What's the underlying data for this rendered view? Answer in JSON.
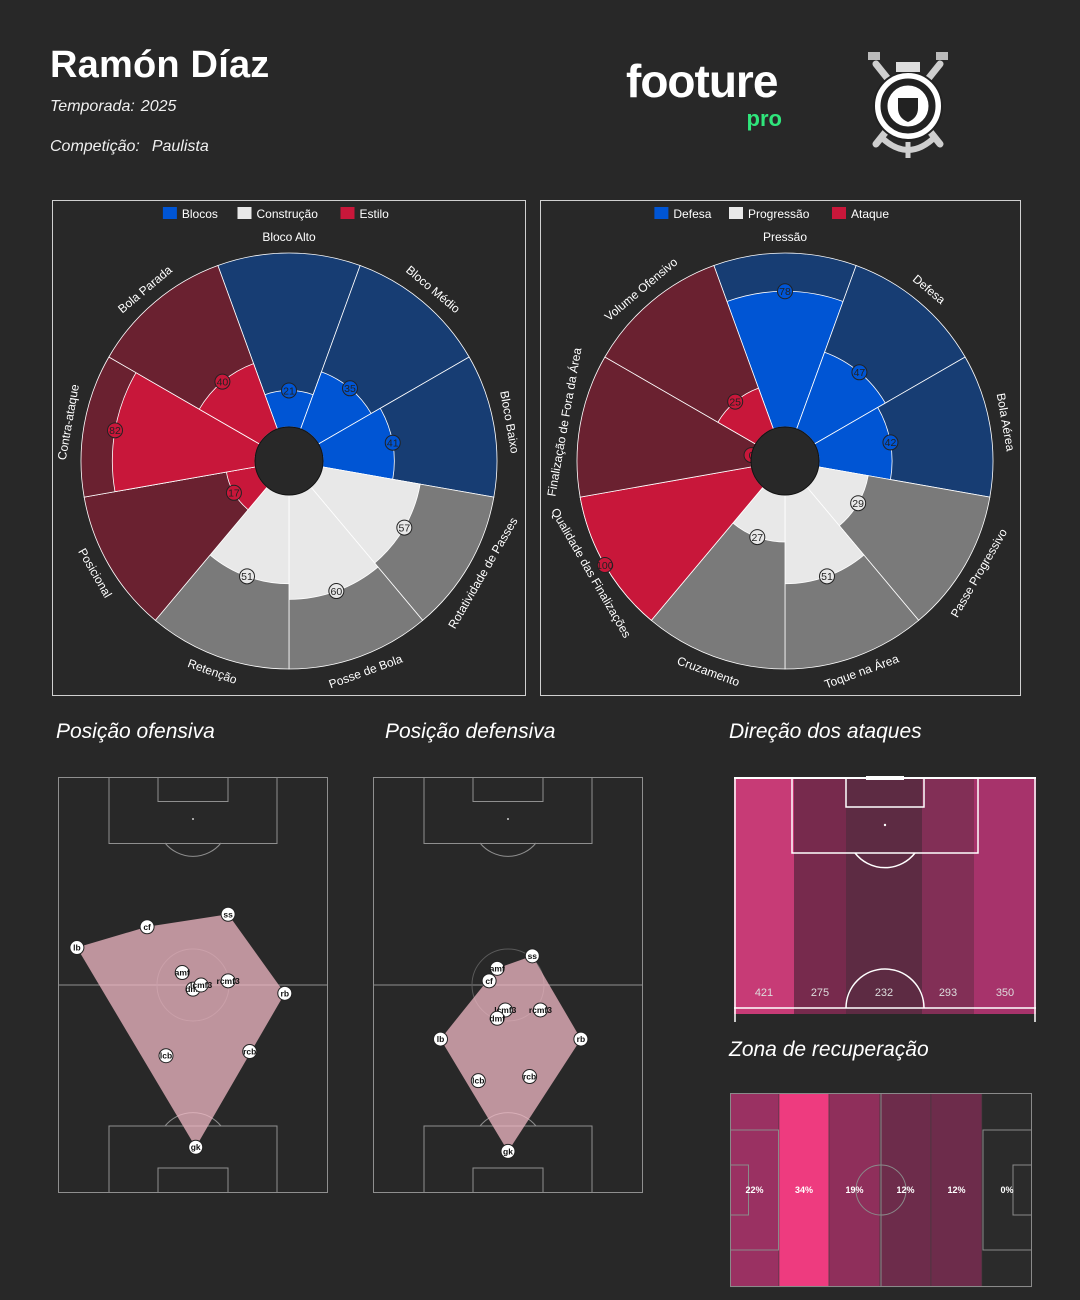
{
  "header": {
    "coach_name": "Ramón Díaz",
    "season_label": "Temporada:",
    "season_value": "2025",
    "competition_label": "Competição:",
    "competition_value": "Paulista",
    "brand_word": "footure",
    "brand_sub": "pro"
  },
  "chart_data": [
    {
      "type": "polar-bar",
      "legend": [
        {
          "label": "Blocos",
          "color": "#0055d4"
        },
        {
          "label": "Construção",
          "color": "#e8e8e8"
        },
        {
          "label": "Estilo",
          "color": "#c8173a"
        }
      ],
      "categories": [
        "Bloco Alto",
        "Bloco Médio",
        "Bloco Baixo",
        "Rotatividade de Passes",
        "Posse de Bola",
        "Retenção",
        "Posicional",
        "Contra-ataque",
        "Bola Parada"
      ],
      "groups": [
        "Blocos",
        "Blocos",
        "Blocos",
        "Construção",
        "Construção",
        "Construção",
        "Estilo",
        "Estilo",
        "Estilo"
      ],
      "values": [
        21,
        35,
        41,
        57,
        60,
        51,
        17,
        82,
        40
      ],
      "rlim": [
        0,
        100
      ]
    },
    {
      "type": "polar-bar",
      "legend": [
        {
          "label": "Defesa",
          "color": "#0055d4"
        },
        {
          "label": "Progressão",
          "color": "#e8e8e8"
        },
        {
          "label": "Ataque",
          "color": "#c8173a"
        }
      ],
      "categories": [
        "Pressão",
        "Defesa",
        "Bola Aérea",
        "Passe Progressivo",
        "Toque na Área",
        "Cruzamento",
        "Qualidade das Finalizações",
        "Finalização de Fora da Área",
        "Volume Ofensivo"
      ],
      "groups": [
        "Defesa",
        "Defesa",
        "Defesa",
        "Progressão",
        "Progressão",
        "Progressão",
        "Ataque",
        "Ataque",
        "Ataque"
      ],
      "values": [
        78,
        47,
        42,
        29,
        51,
        27,
        100,
        0,
        25
      ],
      "rlim": [
        0,
        100
      ]
    },
    {
      "type": "scatter",
      "title": "Posição ofensiva",
      "xlim": [
        0,
        100
      ],
      "ylim": [
        0,
        100
      ],
      "points": [
        {
          "label": "lb",
          "x": 7,
          "y": 59
        },
        {
          "label": "cf",
          "x": 33,
          "y": 64
        },
        {
          "label": "ss",
          "x": 63,
          "y": 67
        },
        {
          "label": "amf",
          "x": 46,
          "y": 53
        },
        {
          "label": "rcmf3",
          "x": 63,
          "y": 51
        },
        {
          "label": "dmf",
          "x": 50,
          "y": 49
        },
        {
          "label": "lcmf3",
          "x": 53,
          "y": 50
        },
        {
          "label": "rb",
          "x": 84,
          "y": 48
        },
        {
          "label": "rcb",
          "x": 71,
          "y": 34
        },
        {
          "label": "lcb",
          "x": 40,
          "y": 33
        },
        {
          "label": "gk",
          "x": 51,
          "y": 11
        }
      ]
    },
    {
      "type": "scatter",
      "title": "Posição defensiva",
      "xlim": [
        0,
        100
      ],
      "ylim": [
        0,
        100
      ],
      "points": [
        {
          "label": "ss",
          "x": 59,
          "y": 57
        },
        {
          "label": "amf",
          "x": 46,
          "y": 54
        },
        {
          "label": "cf",
          "x": 43,
          "y": 51
        },
        {
          "label": "lcmf3",
          "x": 49,
          "y": 44
        },
        {
          "label": "dmf",
          "x": 46,
          "y": 42
        },
        {
          "label": "rcmf3",
          "x": 62,
          "y": 44
        },
        {
          "label": "lb",
          "x": 25,
          "y": 37
        },
        {
          "label": "rb",
          "x": 77,
          "y": 37
        },
        {
          "label": "lcb",
          "x": 39,
          "y": 27
        },
        {
          "label": "rcb",
          "x": 58,
          "y": 28
        },
        {
          "label": "gk",
          "x": 50,
          "y": 10
        }
      ]
    },
    {
      "type": "heatmap",
      "title": "Direção dos ataques",
      "categories": [
        "lane-1",
        "lane-2",
        "lane-3",
        "lane-4",
        "lane-5"
      ],
      "values": [
        421,
        275,
        232,
        293,
        350
      ],
      "colors": [
        "#c73b76",
        "#772a4d",
        "#5d2b43",
        "#822f56",
        "#a7336b"
      ]
    },
    {
      "type": "heatmap",
      "title": "Zona de recuperação",
      "categories": [
        "zone-1",
        "zone-2",
        "zone-3",
        "zone-4",
        "zone-5",
        "zone-6"
      ],
      "values": [
        "22%",
        "34%",
        "19%",
        "12%",
        "12%",
        "0%"
      ],
      "colors": [
        "#9a3162",
        "#ee3b7f",
        "#8f2f5b",
        "#6d2c4b",
        "#6d2c4b",
        "#2b2b2b"
      ]
    }
  ]
}
